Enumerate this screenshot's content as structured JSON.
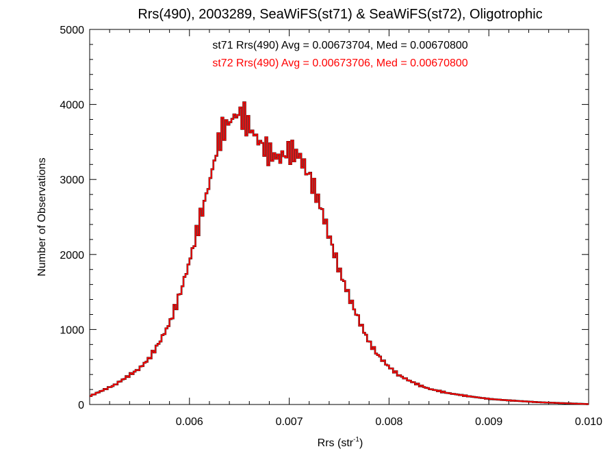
{
  "chart_data": {
    "type": "step-histogram",
    "title": "Rrs(490), 2003289, SeaWiFS(st71) & SeaWiFS(st72), Oligotrophic",
    "xlabel_main": "Rrs (str",
    "xlabel_sup": "-1",
    "xlabel_end": ")",
    "ylabel": "Number of Observations",
    "xlim": [
      0.005,
      0.01
    ],
    "ylim": [
      0,
      5000
    ],
    "x_ticks": [
      0.006,
      0.007,
      0.008,
      0.009,
      0.01
    ],
    "x_tick_labels": [
      "0.006",
      "0.007",
      "0.008",
      "0.009",
      "0.010"
    ],
    "y_ticks": [
      0,
      1000,
      2000,
      3000,
      4000,
      5000
    ],
    "y_tick_labels": [
      "0",
      "1000",
      "2000",
      "3000",
      "4000",
      "5000"
    ],
    "annotations": [
      {
        "text": "st71 Rrs(490) Avg = 0.00673704, Med = 0.00670800",
        "color": "#000000"
      },
      {
        "text": "st72 Rrs(490) Avg = 0.00673706, Med = 0.00670800",
        "color": "#ff0000"
      }
    ],
    "series": [
      {
        "color": "#000000",
        "x": [
          0.005,
          0.00525,
          0.0055,
          0.0056,
          0.0057,
          0.0058,
          0.0059,
          0.006,
          0.0061,
          0.0062,
          0.0063,
          0.00635,
          0.0064,
          0.00645,
          0.0065,
          0.00655,
          0.0066,
          0.00665,
          0.0067,
          0.0068,
          0.0069,
          0.007,
          0.0071,
          0.00715,
          0.0072,
          0.0073,
          0.0074,
          0.0075,
          0.0076,
          0.0077,
          0.0078,
          0.0079,
          0.008,
          0.0081,
          0.0082,
          0.0083,
          0.0084,
          0.0086,
          0.0088,
          0.009,
          0.0092,
          0.0095,
          0.0098,
          0.01
        ],
        "y": [
          110,
          260,
          480,
          620,
          830,
          1080,
          1450,
          1900,
          2440,
          2950,
          3550,
          3680,
          3760,
          3840,
          3880,
          3820,
          3700,
          3600,
          3500,
          3350,
          3280,
          3380,
          3320,
          3180,
          3050,
          2700,
          2250,
          1800,
          1440,
          1120,
          830,
          640,
          500,
          390,
          320,
          260,
          210,
          150,
          110,
          75,
          55,
          30,
          15,
          5
        ]
      },
      {
        "color": "#ff0000",
        "x": [
          0.005,
          0.00525,
          0.0055,
          0.0056,
          0.0057,
          0.0058,
          0.0059,
          0.006,
          0.0061,
          0.0062,
          0.0063,
          0.00635,
          0.0064,
          0.00645,
          0.0065,
          0.00655,
          0.0066,
          0.00665,
          0.0067,
          0.0068,
          0.0069,
          0.007,
          0.0071,
          0.00715,
          0.0072,
          0.0073,
          0.0074,
          0.0075,
          0.0076,
          0.0077,
          0.0078,
          0.0079,
          0.008,
          0.0081,
          0.0082,
          0.0083,
          0.0084,
          0.0086,
          0.0088,
          0.009,
          0.0092,
          0.0095,
          0.0098,
          0.01
        ],
        "y": [
          110,
          260,
          480,
          620,
          830,
          1080,
          1450,
          1900,
          2440,
          2950,
          3550,
          3680,
          3760,
          3840,
          3880,
          3820,
          3700,
          3600,
          3500,
          3350,
          3280,
          3380,
          3320,
          3180,
          3050,
          2700,
          2250,
          1800,
          1440,
          1120,
          830,
          640,
          500,
          390,
          320,
          260,
          210,
          150,
          110,
          75,
          55,
          30,
          15,
          5
        ]
      }
    ],
    "grid": false,
    "legend": "none"
  }
}
